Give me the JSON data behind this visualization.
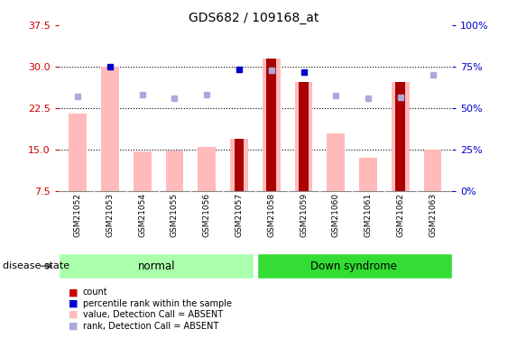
{
  "title": "GDS682 / 109168_at",
  "samples": [
    "GSM21052",
    "GSM21053",
    "GSM21054",
    "GSM21055",
    "GSM21056",
    "GSM21057",
    "GSM21058",
    "GSM21059",
    "GSM21060",
    "GSM21061",
    "GSM21062",
    "GSM21063"
  ],
  "groups": [
    "normal",
    "normal",
    "normal",
    "normal",
    "normal",
    "normal",
    "Down syndrome",
    "Down syndrome",
    "Down syndrome",
    "Down syndrome",
    "Down syndrome",
    "Down syndrome"
  ],
  "pink_bar_values": [
    21.5,
    30.0,
    14.7,
    14.9,
    15.5,
    17.0,
    31.5,
    27.3,
    18.0,
    13.5,
    27.2,
    15.0
  ],
  "dark_bar_values": [
    null,
    null,
    null,
    null,
    null,
    17.0,
    31.5,
    27.3,
    null,
    null,
    27.2,
    null
  ],
  "rank_values_right": [
    57.0,
    75.0,
    58.0,
    56.0,
    58.0,
    73.5,
    73.0,
    72.0,
    57.5,
    56.0,
    56.5,
    70.0
  ],
  "rank_colors": [
    "#aaaadd",
    "#0000cc",
    "#aaaadd",
    "#aaaadd",
    "#aaaadd",
    "#0000cc",
    "#aaaadd",
    "#0000cc",
    "#aaaadd",
    "#aaaadd",
    "#aaaadd",
    "#aaaadd"
  ],
  "ylim_left": [
    7.5,
    37.5
  ],
  "yticks_left": [
    7.5,
    15.0,
    22.5,
    30.0,
    37.5
  ],
  "ylim_right": [
    0,
    100
  ],
  "yticks_right": [
    0,
    25,
    50,
    75,
    100
  ],
  "ytick_labels_right": [
    "0%",
    "25%",
    "50%",
    "75%",
    "100%"
  ],
  "left_tick_color": "#cc0000",
  "right_tick_color": "#0000cc",
  "dark_bar_color": "#aa0000",
  "pink_bar_color": "#ffbbbb",
  "group_normal_color": "#aaffaa",
  "group_down_color": "#33dd33",
  "group_normal_label": "normal",
  "group_down_label": "Down syndrome",
  "disease_state_label": "disease state",
  "legend_colors": [
    "#cc0000",
    "#0000cc",
    "#ffbbbb",
    "#aaaadd"
  ],
  "legend_labels": [
    "count",
    "percentile rank within the sample",
    "value, Detection Call = ABSENT",
    "rank, Detection Call = ABSENT"
  ],
  "fig_width": 5.63,
  "fig_height": 3.75,
  "dpi": 100
}
